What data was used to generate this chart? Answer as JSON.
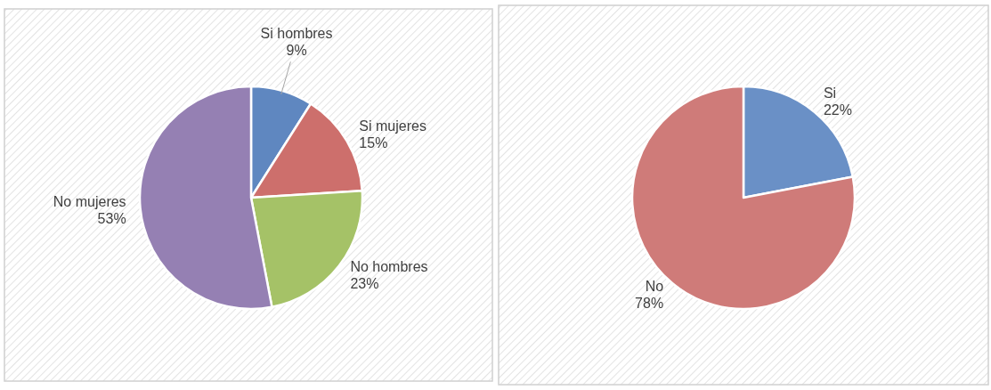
{
  "chart_data": [
    {
      "type": "pie",
      "categories": [
        "Si hombres",
        "Si mujeres",
        "No hombres",
        "No mujeres"
      ],
      "values": [
        9,
        15,
        23,
        53
      ],
      "colors": [
        "#5f87c0",
        "#cd6f6c",
        "#a5c267",
        "#9580b3"
      ],
      "value_labels": [
        "9%",
        "15%",
        "23%",
        "53%"
      ]
    },
    {
      "type": "pie",
      "categories": [
        "Si",
        "No"
      ],
      "values": [
        22,
        78
      ],
      "colors": [
        "#6a90c6",
        "#cf7b79"
      ],
      "value_labels": [
        "22%",
        "78%"
      ]
    }
  ]
}
